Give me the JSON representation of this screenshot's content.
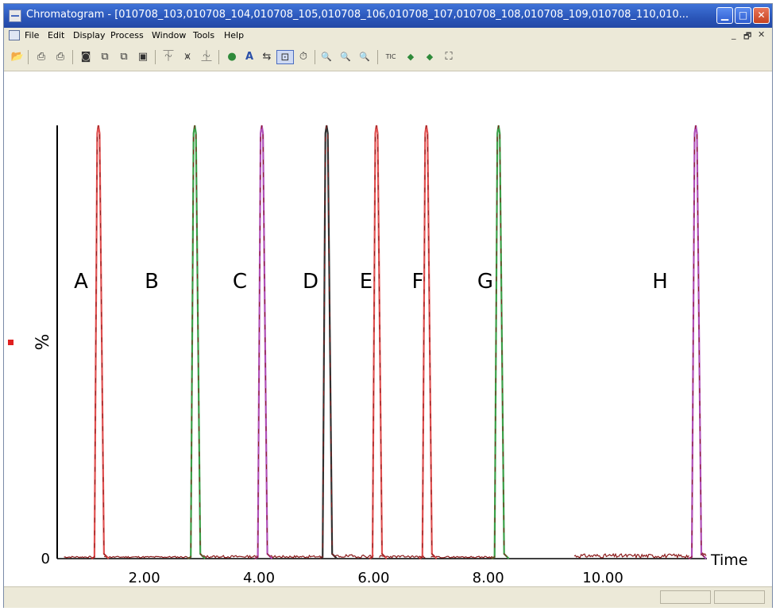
{
  "window": {
    "title": "Chromatogram - [010708_103,010708_104,010708_105,010708_106,010708_107,010708_108,010708_109,010708_110,010..."
  },
  "title_buttons": {
    "minimize": "▁",
    "maximize": "□",
    "close": "✕"
  },
  "menu": [
    "File",
    "Edit",
    "Display",
    "Process",
    "Window",
    "Tools",
    "Help"
  ],
  "mdi_controls": {
    "minimize": "_",
    "restore": "🗗",
    "close": "✕"
  },
  "toolbar_icons": [
    {
      "name": "open-icon",
      "glyph": "📂"
    },
    {
      "name": "print-icon",
      "glyph": "⎙"
    },
    {
      "name": "print-preview-icon",
      "glyph": "⎙"
    },
    {
      "name": "camera-icon",
      "glyph": "◙"
    },
    {
      "name": "copy-icon",
      "glyph": "⧉"
    },
    {
      "name": "copy-list-icon",
      "glyph": "⧉"
    },
    {
      "name": "paste-icon",
      "glyph": "▣"
    },
    {
      "name": "chromatogram-icon",
      "glyph": "⏇"
    },
    {
      "name": "peaks-icon",
      "glyph": "⩙"
    },
    {
      "name": "integrate-icon",
      "glyph": "⏈"
    },
    {
      "name": "globe-icon",
      "glyph": "●"
    },
    {
      "name": "text-annotate-icon",
      "glyph": "A"
    },
    {
      "name": "link-icon",
      "glyph": "⇆"
    },
    {
      "name": "display-icon",
      "glyph": "⊡"
    },
    {
      "name": "timer-icon",
      "glyph": "⏱"
    },
    {
      "name": "zoom-in-icon",
      "glyph": "🔍"
    },
    {
      "name": "zoom-out-icon",
      "glyph": "🔍"
    },
    {
      "name": "zoom-reset-icon",
      "glyph": "🔍"
    },
    {
      "name": "tic-icon",
      "glyph": "TIC"
    },
    {
      "name": "previous-icon",
      "glyph": "◆"
    },
    {
      "name": "next-icon",
      "glyph": "◆"
    },
    {
      "name": "fit-icon",
      "glyph": "⛶"
    }
  ],
  "chart_data": {
    "type": "line",
    "xlabel": "Time",
    "ylabel": "%",
    "xlim": [
      0,
      12
    ],
    "ylim": [
      0,
      100
    ],
    "x_ticks": [
      "2.00",
      "4.00",
      "6.00",
      "8.00",
      "10.00"
    ],
    "y_ticks": [
      "0"
    ],
    "annotations": [
      "A",
      "B",
      "C",
      "D",
      "E",
      "F",
      "G",
      "H"
    ],
    "series": [
      {
        "peak_time": 1.2,
        "height": 100,
        "color": "#e05050"
      },
      {
        "peak_time": 2.88,
        "height": 100,
        "color": "#3aa048"
      },
      {
        "peak_time": 4.05,
        "height": 100,
        "color": "#b04fb8"
      },
      {
        "peak_time": 5.18,
        "height": 100,
        "color": "#303030"
      },
      {
        "peak_time": 6.05,
        "height": 100,
        "color": "#e05050"
      },
      {
        "peak_time": 6.92,
        "height": 100,
        "color": "#e05050"
      },
      {
        "peak_time": 8.18,
        "height": 100,
        "color": "#3aa048"
      },
      {
        "peak_time": 11.62,
        "height": 100,
        "color": "#b04fb8"
      }
    ],
    "colors": {
      "axis": "#000000",
      "noise": "#8b1a1a",
      "marker": "#e02020"
    }
  }
}
